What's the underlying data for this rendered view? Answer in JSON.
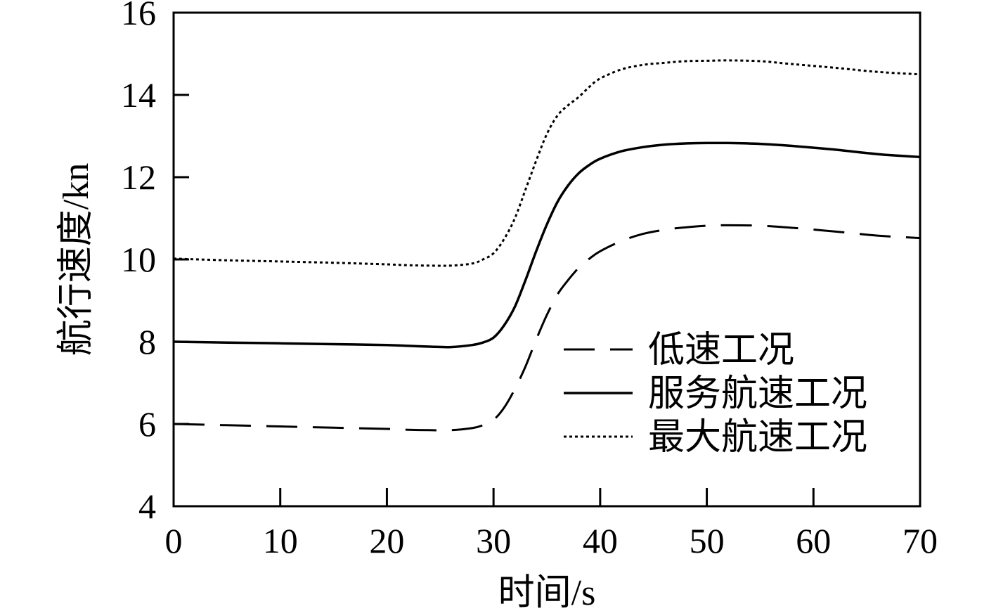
{
  "chart_data": {
    "type": "line",
    "xlabel": "时间/s",
    "ylabel": "航行速度/kn",
    "xlim": [
      0,
      70
    ],
    "ylim": [
      4,
      16
    ],
    "xticks": [
      "0",
      "10",
      "20",
      "30",
      "40",
      "50",
      "60",
      "70"
    ],
    "yticks": [
      "4",
      "6",
      "8",
      "10",
      "12",
      "14",
      "16"
    ],
    "grid": false,
    "legend_position": "lower-right",
    "x": [
      0,
      5,
      10,
      15,
      20,
      22,
      24,
      26,
      28,
      29,
      30,
      31,
      32,
      33,
      34,
      35,
      36,
      37,
      38,
      39,
      40,
      42,
      44,
      46,
      48,
      50,
      52,
      55,
      58,
      62,
      66,
      70
    ],
    "series": [
      {
        "name": "低速工况",
        "style": "dashed",
        "values": [
          6.0,
          5.97,
          5.94,
          5.91,
          5.88,
          5.86,
          5.85,
          5.85,
          5.9,
          5.97,
          6.1,
          6.4,
          6.85,
          7.4,
          8.05,
          8.65,
          9.15,
          9.5,
          9.8,
          10.02,
          10.2,
          10.45,
          10.62,
          10.72,
          10.78,
          10.82,
          10.83,
          10.82,
          10.77,
          10.68,
          10.58,
          10.52
        ]
      },
      {
        "name": "服务航速工况",
        "style": "solid",
        "values": [
          8.0,
          7.98,
          7.96,
          7.94,
          7.92,
          7.9,
          7.88,
          7.87,
          7.92,
          7.98,
          8.1,
          8.4,
          8.85,
          9.5,
          10.2,
          10.85,
          11.4,
          11.8,
          12.1,
          12.3,
          12.45,
          12.63,
          12.73,
          12.79,
          12.82,
          12.83,
          12.83,
          12.81,
          12.76,
          12.67,
          12.56,
          12.49
        ]
      },
      {
        "name": "最大航速工况",
        "style": "dotted",
        "values": [
          10.02,
          9.98,
          9.95,
          9.92,
          9.88,
          9.86,
          9.85,
          9.85,
          9.9,
          10.0,
          10.15,
          10.5,
          11.0,
          11.7,
          12.4,
          13.05,
          13.5,
          13.75,
          13.95,
          14.2,
          14.4,
          14.62,
          14.73,
          14.78,
          14.82,
          14.83,
          14.84,
          14.82,
          14.75,
          14.66,
          14.56,
          14.5
        ]
      }
    ]
  }
}
